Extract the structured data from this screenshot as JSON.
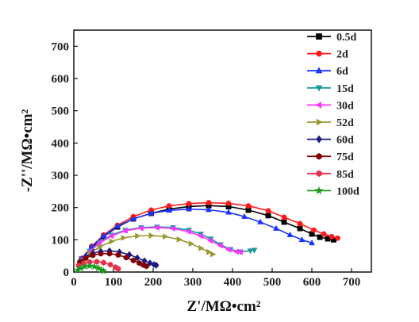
{
  "chart_data": {
    "type": "scatter",
    "xlabel": "Z'/MΩ•cm²",
    "ylabel": "-Z''/MΩ•cm²",
    "xlim": [
      0,
      750
    ],
    "ylim": [
      0,
      750
    ],
    "xticks": [
      0,
      100,
      200,
      300,
      400,
      500,
      600,
      700
    ],
    "yticks": [
      0,
      100,
      200,
      300,
      400,
      500,
      600,
      700
    ],
    "legend_position": "top-right",
    "series": [
      {
        "name": "0.5d",
        "color": "#000000",
        "marker": "square",
        "x": [
          20,
          45,
          75,
          110,
          150,
          195,
          240,
          290,
          340,
          390,
          440,
          490,
          530,
          570,
          600,
          620,
          640,
          655
        ],
        "y": [
          40,
          75,
          110,
          140,
          165,
          182,
          195,
          203,
          206,
          203,
          192,
          175,
          155,
          135,
          118,
          108,
          103,
          100
        ]
      },
      {
        "name": "2d",
        "color": "#ff1a1a",
        "marker": "circle",
        "x": [
          20,
          45,
          75,
          110,
          150,
          195,
          240,
          290,
          340,
          390,
          440,
          490,
          530,
          570,
          605,
          630,
          650,
          665
        ],
        "y": [
          42,
          80,
          115,
          145,
          172,
          192,
          205,
          212,
          215,
          213,
          205,
          190,
          170,
          150,
          130,
          118,
          110,
          105
        ]
      },
      {
        "name": "6d",
        "color": "#1a33ff",
        "marker": "triangle-up",
        "x": [
          20,
          45,
          75,
          110,
          150,
          195,
          240,
          290,
          340,
          390,
          430,
          470,
          510,
          545,
          575,
          600
        ],
        "y": [
          42,
          78,
          112,
          142,
          165,
          182,
          191,
          195,
          193,
          185,
          172,
          155,
          135,
          115,
          100,
          90
        ]
      },
      {
        "name": "15d",
        "color": "#1a9a9a",
        "marker": "triangle-down",
        "x": [
          20,
          40,
          65,
          95,
          130,
          170,
          210,
          250,
          290,
          320,
          345,
          370,
          395,
          420,
          445,
          455
        ],
        "y": [
          38,
          65,
          92,
          115,
          130,
          138,
          140,
          138,
          130,
          118,
          103,
          85,
          70,
          63,
          66,
          68
        ]
      },
      {
        "name": "30d",
        "color": "#ff33ff",
        "marker": "triangle-left",
        "x": [
          20,
          40,
          65,
          95,
          130,
          170,
          210,
          250,
          290,
          320,
          345,
          370,
          390,
          410,
          420
        ],
        "y": [
          38,
          63,
          90,
          112,
          128,
          136,
          138,
          135,
          125,
          112,
          97,
          82,
          70,
          63,
          62
        ]
      },
      {
        "name": "52d",
        "color": "#999933",
        "marker": "triangle-right",
        "x": [
          20,
          40,
          65,
          95,
          125,
          160,
          195,
          230,
          265,
          295,
          320,
          340,
          350
        ],
        "y": [
          35,
          57,
          78,
          95,
          106,
          112,
          113,
          110,
          101,
          88,
          74,
          62,
          55
        ]
      },
      {
        "name": "60d",
        "color": "#1a1a80",
        "marker": "diamond",
        "x": [
          15,
          30,
          48,
          68,
          90,
          115,
          140,
          160,
          178,
          192,
          202,
          208
        ],
        "y": [
          33,
          47,
          58,
          64,
          66,
          62,
          54,
          44,
          35,
          28,
          23,
          21
        ]
      },
      {
        "name": "75d",
        "color": "#800000",
        "marker": "hexagon",
        "x": [
          15,
          30,
          48,
          68,
          90,
          112,
          132,
          150,
          165,
          175,
          183
        ],
        "y": [
          30,
          43,
          52,
          57,
          57,
          53,
          45,
          36,
          28,
          22,
          18
        ]
      },
      {
        "name": "85d",
        "color": "#e6334d",
        "marker": "hexagon",
        "x": [
          12,
          25,
          40,
          58,
          75,
          92,
          105,
          112
        ],
        "y": [
          20,
          27,
          31,
          32,
          29,
          23,
          15,
          10
        ]
      },
      {
        "name": "100d",
        "color": "#1a991a",
        "marker": "star",
        "x": [
          10,
          18,
          28,
          40,
          52,
          62,
          70,
          75
        ],
        "y": [
          6,
          12,
          17,
          19,
          17,
          12,
          6,
          3
        ]
      }
    ]
  }
}
